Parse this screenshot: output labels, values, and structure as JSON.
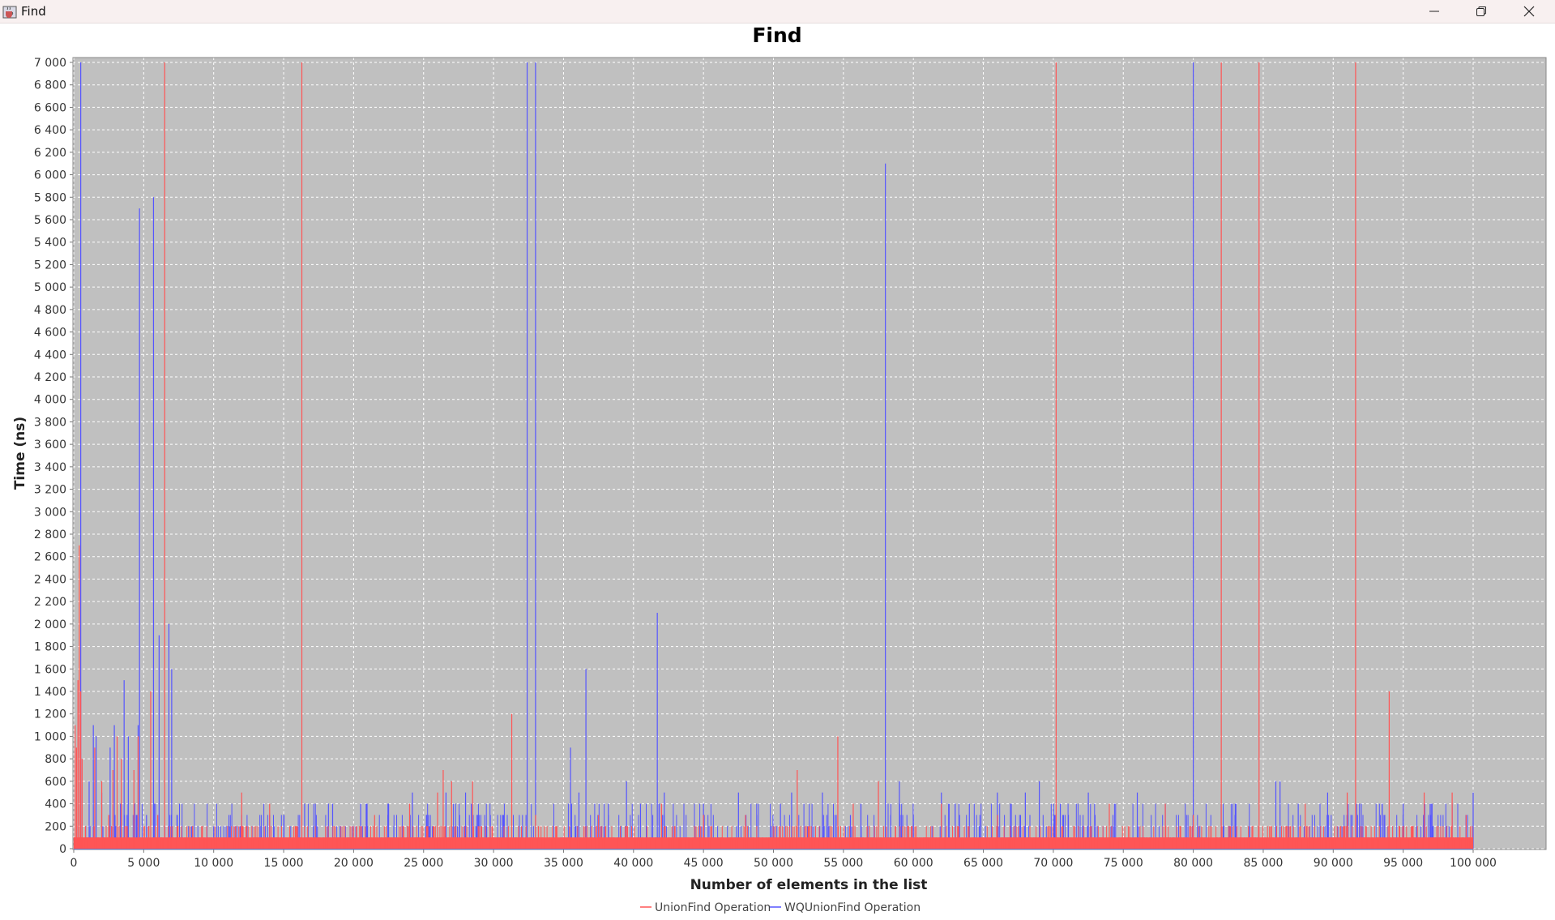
{
  "window": {
    "title": "Find",
    "icons": {
      "app": "java-cup-icon",
      "minimize": "minimize-icon",
      "maximize": "restore-icon",
      "close": "close-icon"
    }
  },
  "colors": {
    "plot_background": "#c0c0c0",
    "grid": "#ffffff",
    "union_find": "#ff5555",
    "wq_union_find": "#5555ff"
  },
  "chart_data": {
    "type": "line",
    "title": "Find",
    "xlabel": "Number of elements in the list",
    "ylabel": "Time (ns)",
    "xlim": [
      0,
      105000
    ],
    "ylim": [
      0,
      7000
    ],
    "x_ticks": [
      "0",
      "5 000",
      "10 000",
      "15 000",
      "20 000",
      "25 000",
      "30 000",
      "35 000",
      "40 000",
      "45 000",
      "50 000",
      "55 000",
      "60 000",
      "65 000",
      "70 000",
      "75 000",
      "80 000",
      "85 000",
      "90 000",
      "95 000",
      "100 000"
    ],
    "y_ticks": [
      "0",
      "200",
      "400",
      "600",
      "800",
      "1 000",
      "1 200",
      "1 400",
      "1 600",
      "1 800",
      "2 000",
      "2 200",
      "2 400",
      "2 600",
      "2 800",
      "3 000",
      "3 200",
      "3 400",
      "3 600",
      "3 800",
      "4 000",
      "4 200",
      "4 400",
      "4 600",
      "4 800",
      "5 000",
      "5 200",
      "5 400",
      "5 600",
      "5 800",
      "6 000",
      "6 200",
      "6 400",
      "6 600",
      "6 800",
      "7 000"
    ],
    "grid": true,
    "legend_position": "bottom-center",
    "series": [
      {
        "name": "UnionFind Operation",
        "color": "#ff5555",
        "baseline": 100,
        "x_max": 100000,
        "spikes": [
          [
            100,
            1100
          ],
          [
            200,
            900
          ],
          [
            300,
            1500
          ],
          [
            400,
            2700
          ],
          [
            500,
            1400
          ],
          [
            600,
            800
          ],
          [
            1500,
            900
          ],
          [
            2000,
            600
          ],
          [
            2500,
            300
          ],
          [
            2800,
            700
          ],
          [
            3100,
            1000
          ],
          [
            3400,
            800
          ],
          [
            4300,
            700
          ],
          [
            4600,
            1000
          ],
          [
            5500,
            1400
          ],
          [
            6000,
            300
          ],
          [
            6500,
            7000
          ],
          [
            8500,
            200
          ],
          [
            12000,
            500
          ],
          [
            14000,
            400
          ],
          [
            16300,
            7000
          ],
          [
            18000,
            200
          ],
          [
            21500,
            300
          ],
          [
            24000,
            400
          ],
          [
            26000,
            500
          ],
          [
            26400,
            700
          ],
          [
            27000,
            600
          ],
          [
            28500,
            600
          ],
          [
            31300,
            1200
          ],
          [
            33000,
            300
          ],
          [
            37500,
            300
          ],
          [
            42000,
            400
          ],
          [
            45000,
            300
          ],
          [
            48000,
            300
          ],
          [
            51700,
            700
          ],
          [
            54600,
            1000
          ],
          [
            55700,
            400
          ],
          [
            57500,
            600
          ],
          [
            62000,
            400
          ],
          [
            66000,
            300
          ],
          [
            70200,
            7000
          ],
          [
            74000,
            400
          ],
          [
            78000,
            400
          ],
          [
            80000,
            300
          ],
          [
            82000,
            7000
          ],
          [
            84700,
            7000
          ],
          [
            88000,
            400
          ],
          [
            91000,
            500
          ],
          [
            91600,
            7000
          ],
          [
            94000,
            1400
          ],
          [
            96500,
            500
          ],
          [
            98500,
            500
          ],
          [
            99500,
            300
          ]
        ]
      },
      {
        "name": "WQUnionFind Operation",
        "color": "#5555ff",
        "baseline": 0,
        "x_max": 100000,
        "spikes": [
          [
            500,
            7000
          ],
          [
            1100,
            600
          ],
          [
            1400,
            1100
          ],
          [
            1600,
            1000
          ],
          [
            2000,
            500
          ],
          [
            2600,
            900
          ],
          [
            2900,
            1100
          ],
          [
            3600,
            1500
          ],
          [
            3900,
            1000
          ],
          [
            4600,
            1100
          ],
          [
            4700,
            5700
          ],
          [
            5200,
            300
          ],
          [
            5700,
            5800
          ],
          [
            6100,
            1900
          ],
          [
            6800,
            2000
          ],
          [
            7000,
            1600
          ],
          [
            7400,
            300
          ],
          [
            10000,
            200
          ],
          [
            14000,
            300
          ],
          [
            16500,
            400
          ],
          [
            18200,
            400
          ],
          [
            18500,
            400
          ],
          [
            20500,
            400
          ],
          [
            22500,
            400
          ],
          [
            24200,
            500
          ],
          [
            25200,
            300
          ],
          [
            26600,
            500
          ],
          [
            28000,
            500
          ],
          [
            32400,
            7000
          ],
          [
            33000,
            7000
          ],
          [
            35500,
            900
          ],
          [
            36100,
            500
          ],
          [
            36600,
            1600
          ],
          [
            38200,
            400
          ],
          [
            39500,
            600
          ],
          [
            40500,
            400
          ],
          [
            41700,
            2100
          ],
          [
            42200,
            500
          ],
          [
            45000,
            400
          ],
          [
            47500,
            500
          ],
          [
            50500,
            400
          ],
          [
            51300,
            500
          ],
          [
            53500,
            500
          ],
          [
            55500,
            300
          ],
          [
            58000,
            6100
          ],
          [
            59000,
            600
          ],
          [
            60000,
            300
          ],
          [
            62000,
            500
          ],
          [
            64000,
            400
          ],
          [
            66000,
            500
          ],
          [
            68000,
            500
          ],
          [
            69000,
            600
          ],
          [
            70500,
            400
          ],
          [
            72500,
            500
          ],
          [
            76000,
            500
          ],
          [
            78000,
            400
          ],
          [
            80000,
            7000
          ],
          [
            83000,
            400
          ],
          [
            85900,
            600
          ],
          [
            86200,
            600
          ],
          [
            87500,
            400
          ],
          [
            89600,
            500
          ],
          [
            92000,
            400
          ],
          [
            93500,
            400
          ],
          [
            95000,
            400
          ],
          [
            97000,
            400
          ],
          [
            98500,
            400
          ],
          [
            100000,
            500
          ]
        ]
      }
    ]
  }
}
